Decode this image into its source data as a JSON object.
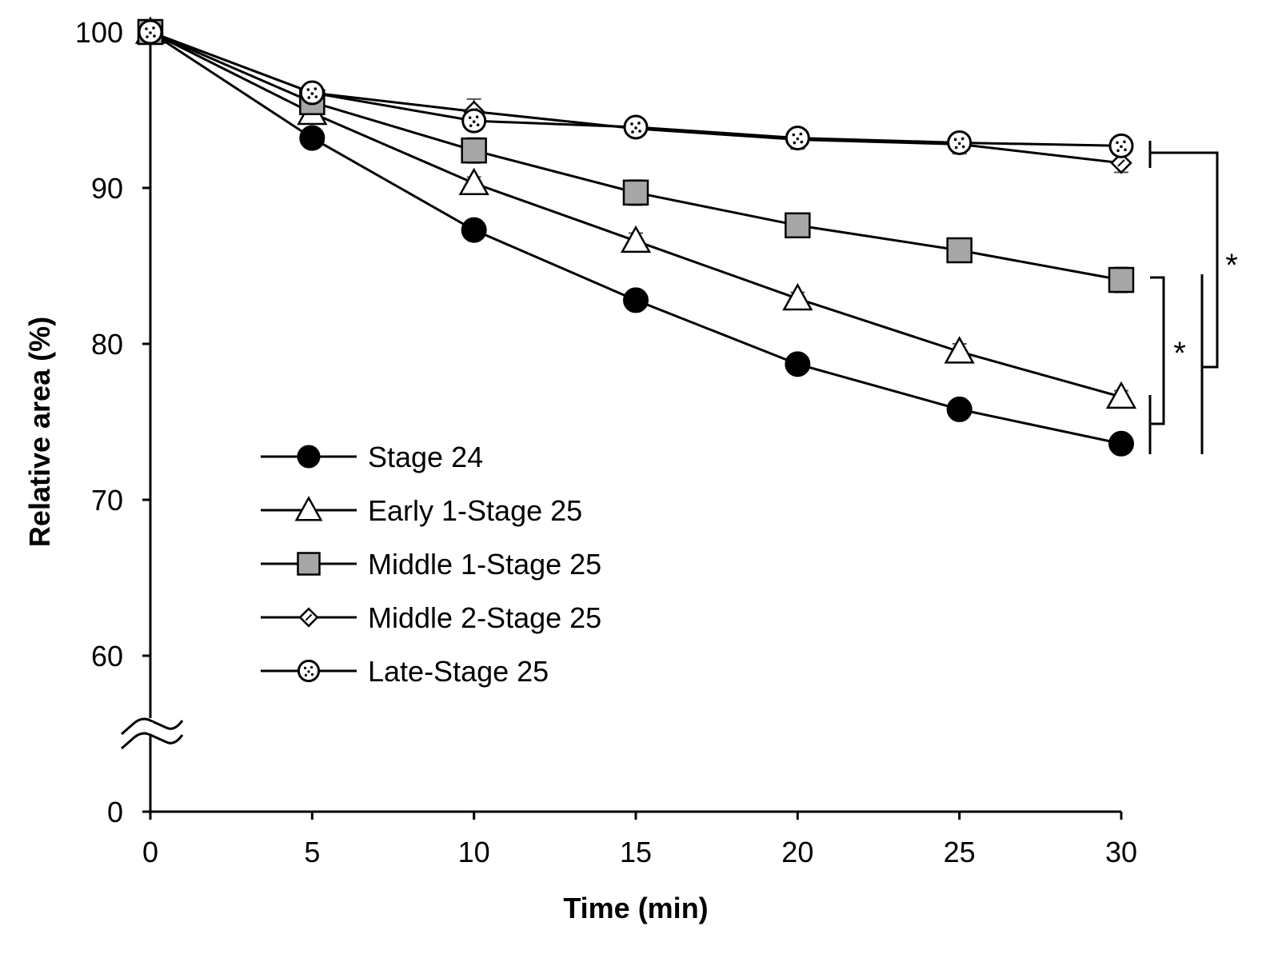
{
  "chart_data": {
    "type": "line",
    "title": "",
    "xlabel": "Time (min)",
    "ylabel": "Relative area (%)",
    "xlim": [
      0,
      30
    ],
    "x": [
      0,
      5,
      10,
      15,
      20,
      25,
      30
    ],
    "x_tick_labels": [
      "0",
      "5",
      "10",
      "15",
      "20",
      "25",
      "30"
    ],
    "y_axis_broken": true,
    "y_tick_labels": [
      "0",
      "60",
      "70",
      "80",
      "90",
      "100"
    ],
    "y_upper_range": [
      60,
      100
    ],
    "legend_position": "center-left",
    "grid": false,
    "series": [
      {
        "name": "Stage 24",
        "marker": "circle-filled",
        "values": [
          100,
          93.2,
          87.3,
          82.8,
          78.7,
          75.8,
          73.6
        ],
        "errors": [
          0,
          0.3,
          0.3,
          0.3,
          0.3,
          0.3,
          0.3
        ]
      },
      {
        "name": "Early 1-Stage 25",
        "marker": "triangle-open",
        "values": [
          100,
          94.8,
          90.3,
          86.6,
          82.9,
          79.5,
          76.6
        ],
        "errors": [
          0,
          0.4,
          0.4,
          0.5,
          0.4,
          0.5,
          0.4
        ]
      },
      {
        "name": "Middle 1-Stage 25",
        "marker": "square-gray",
        "values": [
          100,
          95.5,
          92.4,
          89.7,
          87.6,
          86.0,
          84.1
        ],
        "errors": [
          0,
          0.6,
          0.8,
          0.8,
          0.6,
          0.6,
          0.8
        ]
      },
      {
        "name": "Middle 2-Stage 25",
        "marker": "diamond-open",
        "values": [
          100,
          96.1,
          94.9,
          93.8,
          93.1,
          92.8,
          91.6
        ],
        "errors": [
          0,
          0.5,
          0.8,
          0.4,
          0.6,
          0.6,
          0.6
        ]
      },
      {
        "name": "Late-Stage 25",
        "marker": "circle-open-dotted",
        "values": [
          100,
          96.1,
          94.3,
          93.9,
          93.2,
          92.9,
          92.7
        ],
        "errors": [
          0,
          0.4,
          0.5,
          0.3,
          0.4,
          0.4,
          0.3
        ]
      }
    ],
    "annotations": [
      "*",
      "*"
    ]
  }
}
